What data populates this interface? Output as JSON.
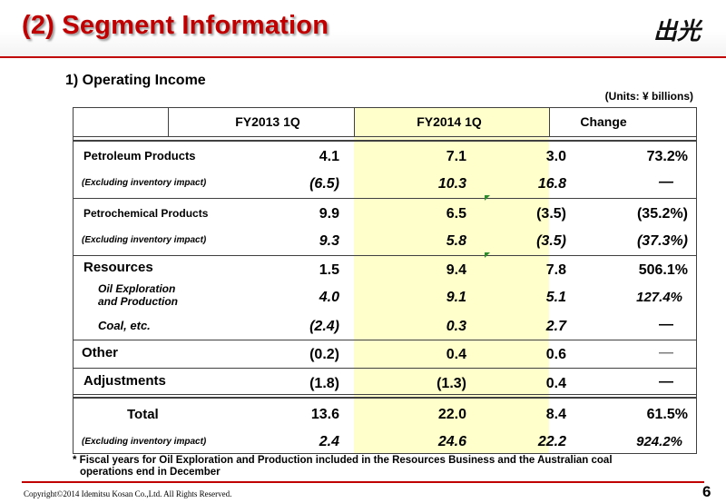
{
  "title": "(2) Segment Information",
  "subtitle": "1) Operating Income",
  "units": "(Units: ¥ billions)",
  "logo": {
    "text": "出光",
    "icon": "idemitsu-logo"
  },
  "table": {
    "headers": [
      "FY2013 1Q",
      "FY2014 1Q",
      "Change"
    ],
    "rows": [
      {
        "label": "Petroleum Products",
        "fy2013": "4.1",
        "fy2014": "7.1",
        "change": "3.0",
        "pct": "73.2%"
      },
      {
        "label": "(Excluding inventory impact)",
        "fy2013": "(6.5)",
        "fy2014": "10.3",
        "change": "16.8",
        "pct": "―"
      },
      {
        "label": "Petrochemical Products",
        "fy2013": "9.9",
        "fy2014": "6.5",
        "change": "(3.5)",
        "pct": "(35.2%)"
      },
      {
        "label": "(Excluding inventory impact)",
        "fy2013": "9.3",
        "fy2014": "5.8",
        "change": "(3.5)",
        "pct": "(37.3%)"
      },
      {
        "label": "Resources",
        "fy2013": "1.5",
        "fy2014": "9.4",
        "change": "7.8",
        "pct": "506.1%"
      },
      {
        "label_line1": "Oil Exploration",
        "label_line2": "and Production",
        "fy2013": "4.0",
        "fy2014": "9.1",
        "change": "5.1",
        "pct": "127.4%"
      },
      {
        "label": "Coal, etc.",
        "fy2013": "(2.4)",
        "fy2014": "0.3",
        "change": "2.7",
        "pct": "―"
      },
      {
        "label": "Other",
        "fy2013": "(0.2)",
        "fy2014": "0.4",
        "change": "0.6",
        "pct": "―"
      },
      {
        "label": "Adjustments",
        "fy2013": "(1.8)",
        "fy2014": "(1.3)",
        "change": "0.4",
        "pct": "―"
      },
      {
        "label": "Total",
        "fy2013": "13.6",
        "fy2014": "22.0",
        "change": "8.4",
        "pct": "61.5%"
      },
      {
        "label": "(Excluding inventory impact)",
        "fy2013": "2.4",
        "fy2014": "24.6",
        "change": "22.2",
        "pct": "924.2%"
      }
    ]
  },
  "footnote_line1": "* Fiscal years for Oil Exploration and Production included in the Resources Business and the Australian coal",
  "footnote_line2": "operations end in December",
  "copyright": "Copyright©2014 Idemitsu Kosan Co.,Ltd. All Rights Reserved.",
  "page_number": "6",
  "colors": {
    "title": "#c00000",
    "highlight_column": "#ffffcc",
    "rule": "#c00000"
  }
}
